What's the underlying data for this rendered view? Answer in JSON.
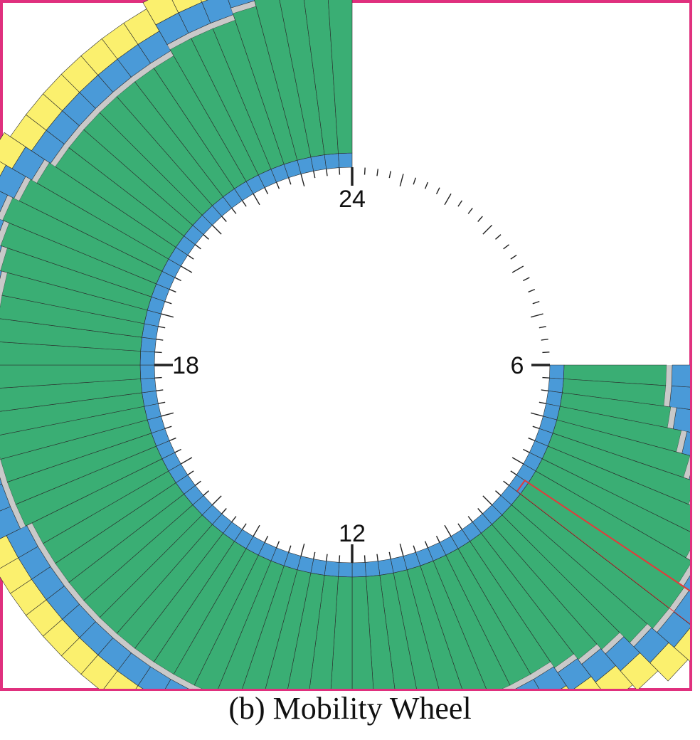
{
  "caption": "(b) Mobility Wheel",
  "colors": {
    "frame": "#e0307e",
    "inner": "#4a9ad8",
    "core": "#3aae74",
    "gap": "#c9c9c9",
    "outer_blue": "#4a9ad8",
    "outer": "#fbf06e",
    "highlight": "#e23a3a",
    "tick": "#222222"
  },
  "chart_data": {
    "type": "radial-bar",
    "title": "",
    "clock_hours": 24,
    "start_hour": 6,
    "end_hour": 24,
    "hour_labels": [
      "6",
      "12",
      "18",
      "24"
    ],
    "slots": 72,
    "highlighted_slot": 9,
    "layers": [
      "inner",
      "core",
      "gap",
      "outer_blue",
      "outer"
    ],
    "bar_extent": [
      0.24,
      0.24,
      0.25,
      0.27,
      0.29,
      0.31,
      0.33,
      0.34,
      0.35,
      0.36,
      0.36,
      0.35,
      0.33,
      0.32,
      0.31,
      0.3,
      0.3,
      0.3,
      0.3,
      0.3,
      0.3,
      0.3,
      0.3,
      0.3,
      0.3,
      0.3,
      0.3,
      0.3,
      0.3,
      0.3,
      0.3,
      0.3,
      0.3,
      0.3,
      0.3,
      0.3,
      0.3,
      0.3,
      0.3,
      0.3,
      0.3,
      0.31,
      0.31,
      0.31,
      0.31,
      0.32,
      0.31,
      0.31,
      0.3,
      0.3,
      0.3,
      0.3,
      0.31,
      0.32,
      0.33,
      0.32,
      0.31,
      0.3,
      0.3,
      0.3,
      0.3,
      0.3,
      0.3,
      0.3,
      0.31,
      0.31,
      0.31,
      0.32,
      0.4,
      0.4,
      0.4,
      0.4
    ]
  }
}
